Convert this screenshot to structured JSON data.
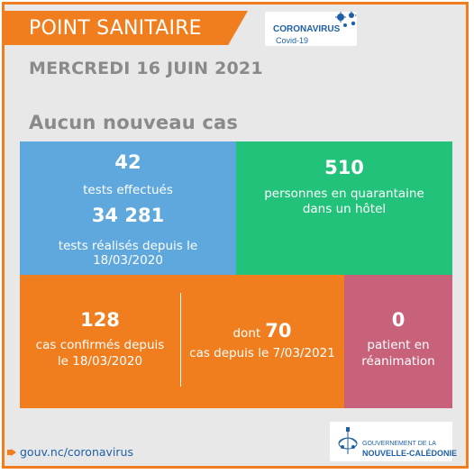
{
  "header": {
    "title": "POINT SANITAIRE",
    "badge_title": "CORONAVIRUS",
    "badge_subtitle": "Covid-19",
    "accent": "#f07d1e",
    "badge_color": "#1f5fa6"
  },
  "date": "MERCREDI 16 JUIN 2021",
  "subtitle": "Aucun nouveau cas",
  "tiles": {
    "tests": {
      "count": "42",
      "count_label": "tests effectués",
      "total": "34 281",
      "total_label_line1": "tests réalisés depuis le",
      "total_label_line2": "18/03/2020",
      "color": "#5fa8de"
    },
    "quarantine": {
      "count": "510",
      "label_line1": "personnes en quarantaine",
      "label_line2": "dans un hôtel",
      "color": "#22c27a"
    },
    "confirmed": {
      "count": "128",
      "label_line1": "cas confirmés depuis",
      "label_line2": "le 18/03/2020",
      "dont_prefix": "dont",
      "dont_count": "70",
      "dont_label": "cas depuis le 7/03/2021",
      "color": "#f07d1e"
    },
    "reanimation": {
      "count": "0",
      "label_line1": "patient en",
      "label_line2": "réanimation",
      "color": "#c8627a"
    }
  },
  "footer": {
    "link": "gouv.nc/coronavirus",
    "gov_line1": "GOUVERNEMENT DE LA",
    "gov_line2": "NOUVELLE-CALÉDONIE"
  }
}
